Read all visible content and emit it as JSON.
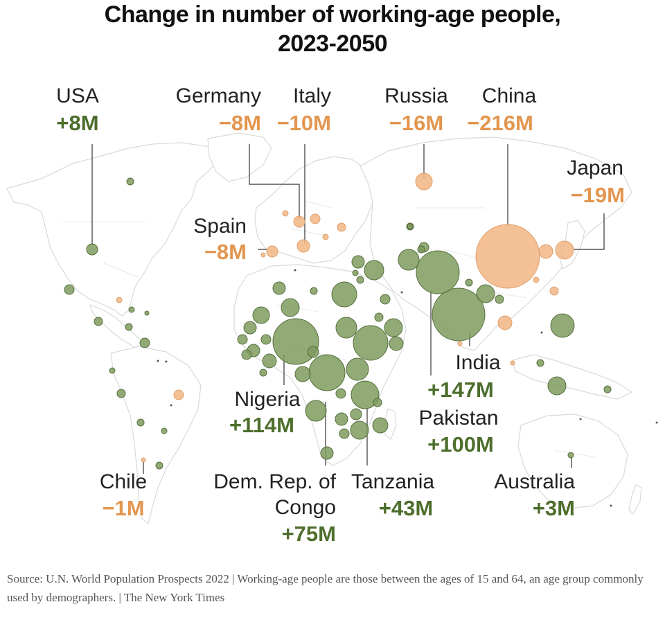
{
  "title": {
    "line1": "Change in number of working-age people,",
    "line2": "2023-2050"
  },
  "labels": {
    "usa": {
      "name": "USA",
      "value": "+8M"
    },
    "germany": {
      "name": "Germany",
      "value": "−8M"
    },
    "italy": {
      "name": "Italy",
      "value": "−10M"
    },
    "russia": {
      "name": "Russia",
      "value": "−16M"
    },
    "china": {
      "name": "China",
      "value": "−216M"
    },
    "japan": {
      "name": "Japan",
      "value": "−19M"
    },
    "spain": {
      "name": "Spain",
      "value": "−8M"
    },
    "india": {
      "name": "India",
      "value": "+147M"
    },
    "pakistan": {
      "name": "Pakistan",
      "value": "+100M"
    },
    "nigeria": {
      "name": "Nigeria",
      "value": "+114M"
    },
    "drc": {
      "name_line1": "Dem. Rep. of",
      "name_line2": "Congo",
      "value": "+75M"
    },
    "tanzania": {
      "name": "Tanzania",
      "value": "+43M"
    },
    "australia": {
      "name": "Australia",
      "value": "+3M"
    },
    "chile": {
      "name": "Chile",
      "value": "−1M"
    }
  },
  "colors": {
    "increase": "#4d6e2c",
    "decrease": "#e2964f"
  },
  "source": "Source: U.N. World Population Prospects 2022 | Working-age people are those between the ages of 15 and 64, an age group commonly used by demographers. | The New York Times"
}
